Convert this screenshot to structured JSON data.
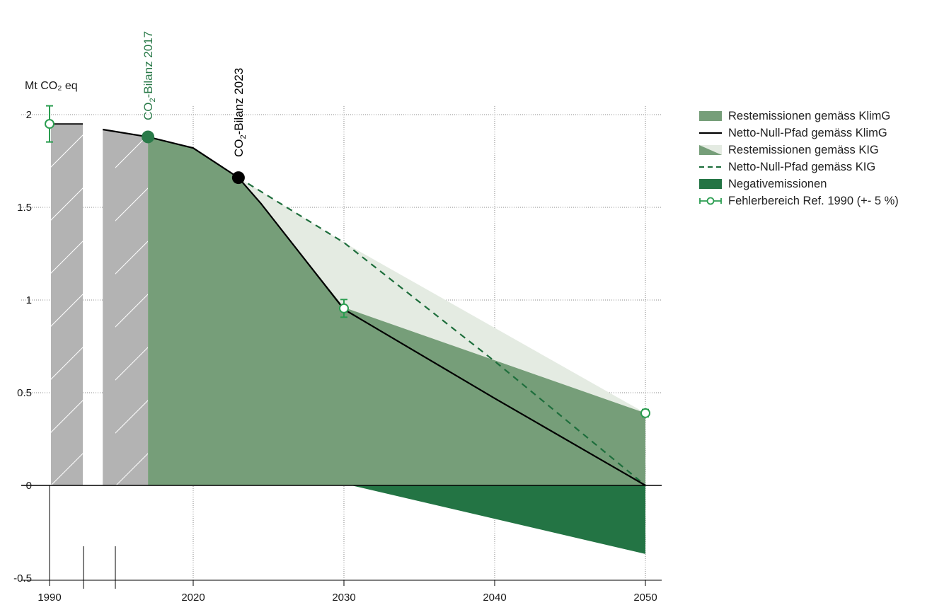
{
  "chart_data": {
    "type": "area",
    "unit_label": "Mt CO₂ eq",
    "ylim": [
      -0.5,
      2
    ],
    "yticks": [
      {
        "value": 2,
        "label": "2"
      },
      {
        "value": 1.5,
        "label": "1.5"
      },
      {
        "value": 1,
        "label": "1"
      },
      {
        "value": 0.5,
        "label": "0.5"
      },
      {
        "value": 0,
        "label": "0"
      },
      {
        "value": -0.5,
        "label": "-0.5"
      }
    ],
    "xticks": [
      {
        "value": 1990,
        "label": "1990"
      },
      {
        "value": 2020,
        "label": "2020"
      },
      {
        "value": 2030,
        "label": "2030"
      },
      {
        "value": 2040,
        "label": "2040"
      },
      {
        "value": 2050,
        "label": "2050"
      }
    ],
    "grid": true,
    "legend_position": "right",
    "reference_1990": {
      "year": 1990,
      "value": 1.95
    },
    "historical": [
      [
        2014,
        1.92
      ],
      [
        2017,
        1.88
      ]
    ],
    "series": [
      {
        "name": "Restemissionen gemäss KlimG",
        "color": "#769e79",
        "points": [
          [
            2017,
            1.88
          ],
          [
            2020,
            1.82
          ],
          [
            2023,
            1.66
          ],
          [
            2024.5,
            1.52
          ],
          [
            2030,
            0.96
          ],
          [
            2050,
            0.39
          ]
        ]
      },
      {
        "name": "Netto-Null-Pfad gemäss KlimG",
        "color": "#000000",
        "points": [
          [
            2014,
            1.92
          ],
          [
            2017,
            1.88
          ],
          [
            2020,
            1.82
          ],
          [
            2023,
            1.66
          ],
          [
            2024.5,
            1.52
          ],
          [
            2030,
            0.95
          ],
          [
            2040,
            0.47
          ],
          [
            2050,
            0.0
          ]
        ]
      },
      {
        "name": "Restemissionen gemäss KIG",
        "color": "#e4ebe2",
        "points": [
          [
            2023,
            1.66
          ],
          [
            2030,
            1.31
          ],
          [
            2050,
            0.39
          ]
        ]
      },
      {
        "name": "Netto-Null-Pfad gemäss KIG",
        "color": "#1e6e3c",
        "points": [
          [
            2023,
            1.66
          ],
          [
            2030,
            1.31
          ],
          [
            2040,
            0.67
          ],
          [
            2050,
            0.0
          ]
        ]
      },
      {
        "name": "Negativemissionen",
        "color": "#237444",
        "points": [
          [
            2030.5,
            0
          ],
          [
            2050,
            -0.37
          ]
        ]
      },
      {
        "name": "Fehlerbereich Ref. 1990 (+- 5 %)",
        "color": "#2a9d50",
        "points": [
          [
            1990,
            1.95
          ],
          [
            2030,
            0.955
          ],
          [
            2050,
            0.39
          ]
        ],
        "error_pct": 5
      }
    ],
    "annotations": [
      {
        "label_prefix": "CO",
        "label_sub": "2",
        "label_suffix": "-Bilanz 2017",
        "year": 2017,
        "value": 1.88,
        "color": "#2a7a49"
      },
      {
        "label_prefix": "CO",
        "label_sub": "2",
        "label_suffix": "-Bilanz  2023",
        "year": 2023,
        "value": 1.66,
        "color": "#000000"
      }
    ]
  },
  "colors": {
    "hist_gray": "#b3b3b3",
    "light_green": "#e4ebe2",
    "mid_green": "#769e79",
    "dark_green": "#237444",
    "marker_green": "#2a9d50",
    "dash_green": "#1e6e3c"
  }
}
